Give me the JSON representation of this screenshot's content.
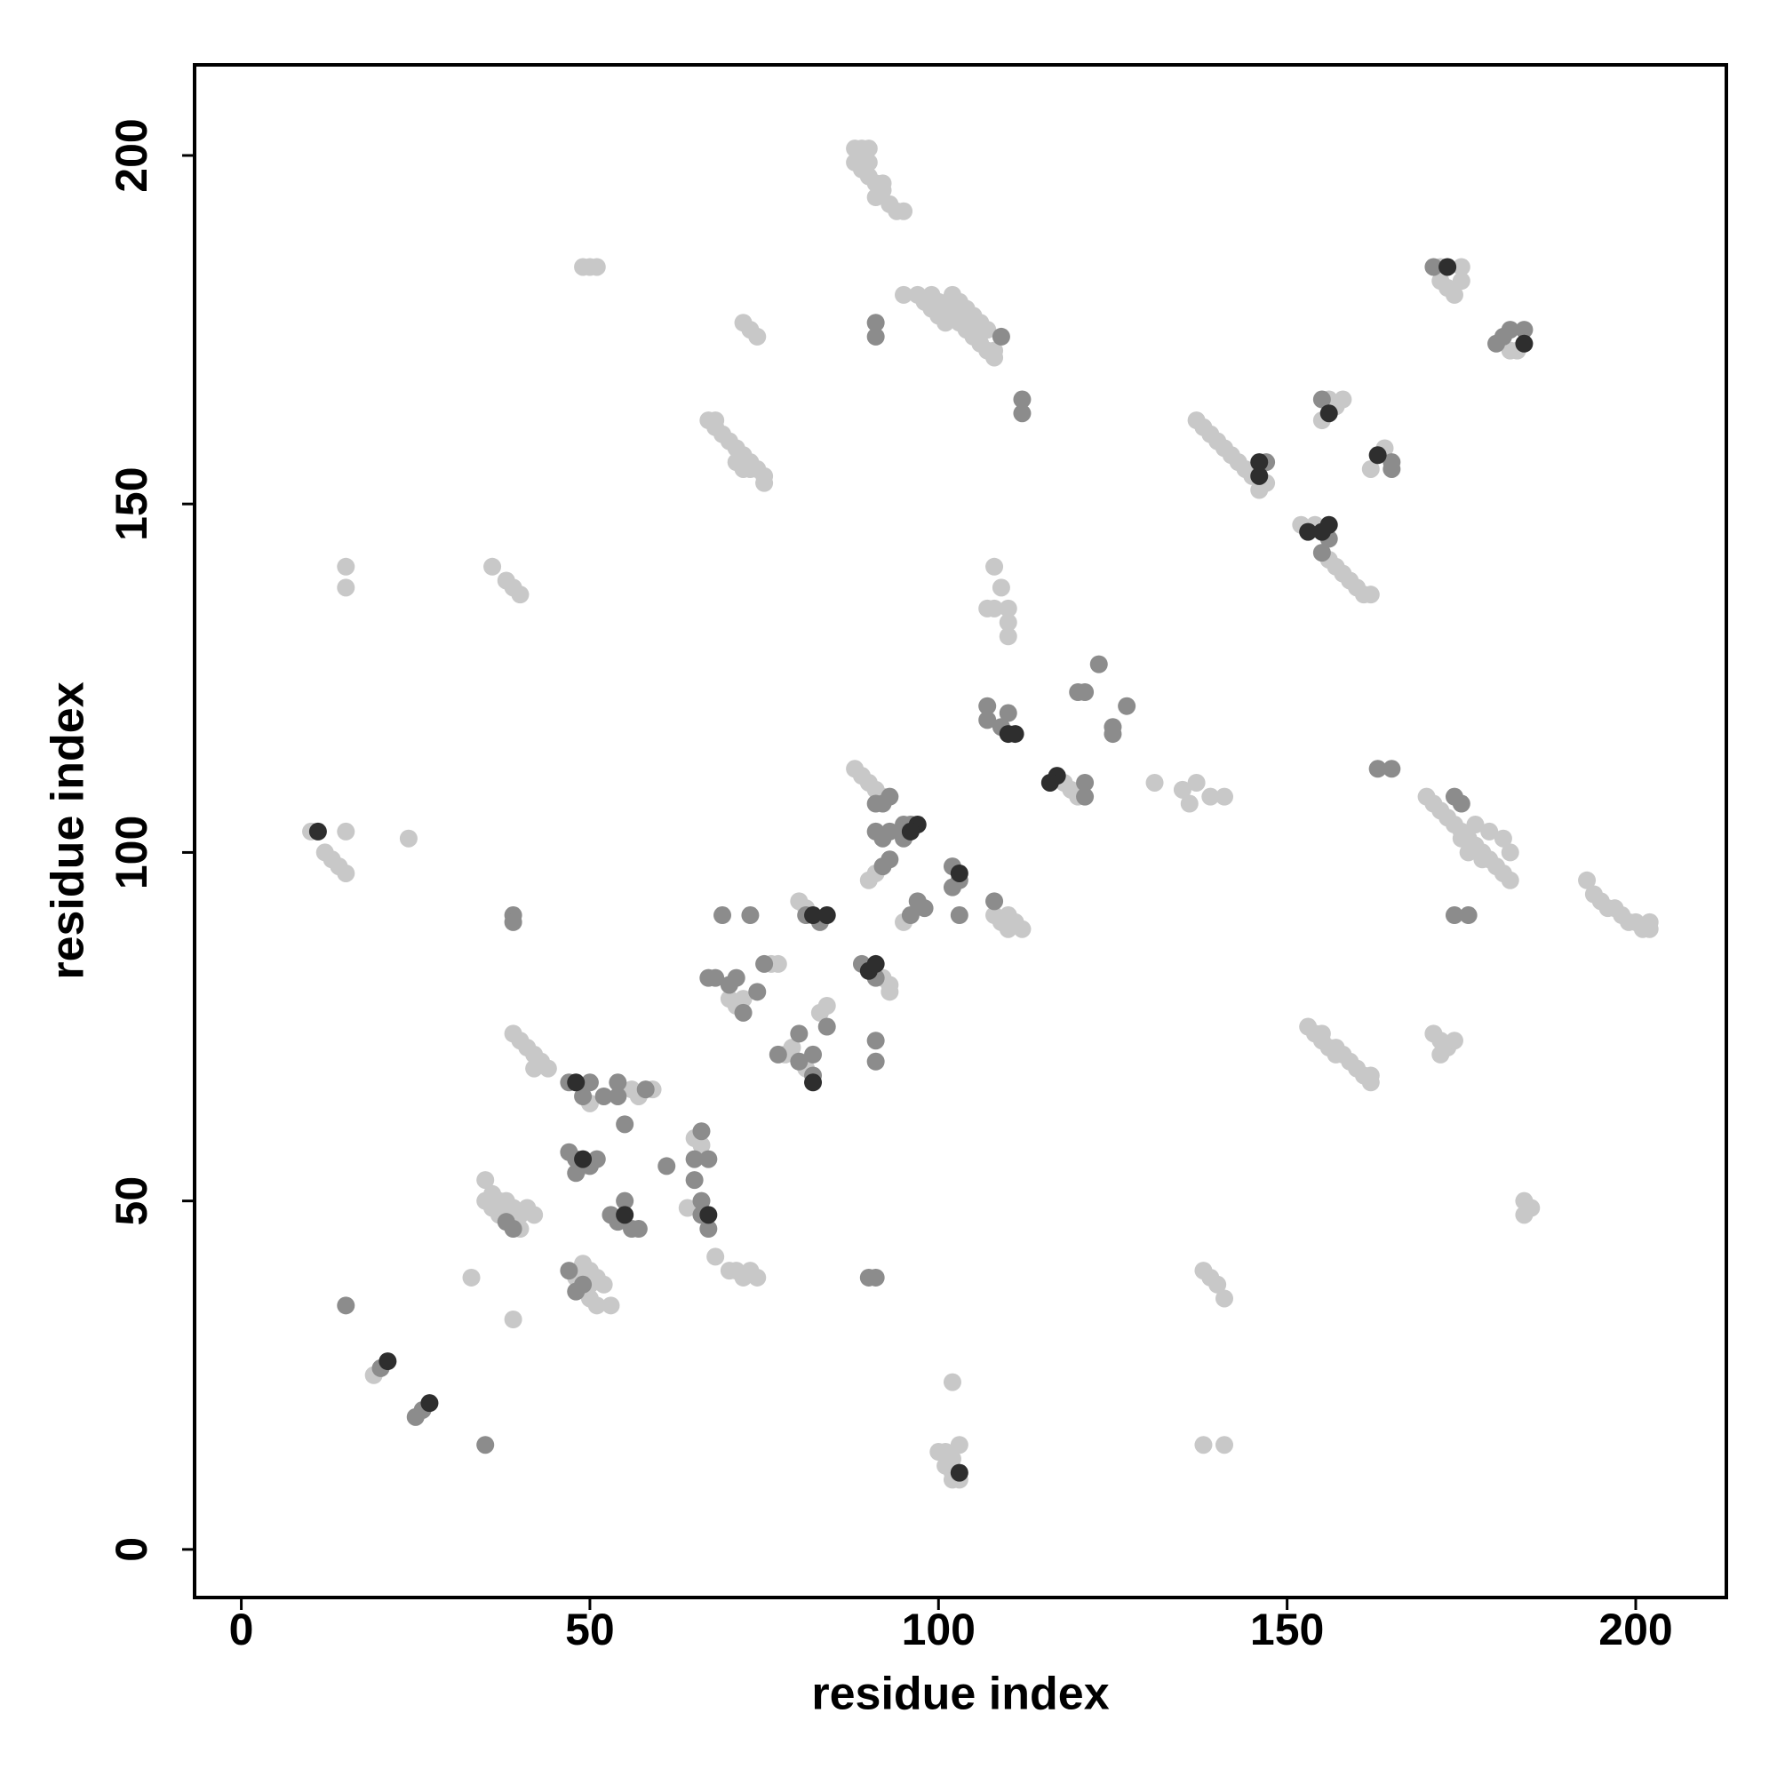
{
  "chart_data": {
    "type": "scatter",
    "x_label": "residue index",
    "y_label": "residue index",
    "xlim": [
      -6.7,
      213
    ],
    "ylim": [
      -6.9,
      213
    ],
    "xticks": [
      0,
      50,
      100,
      150,
      200
    ],
    "yticks": [
      0,
      50,
      100,
      150,
      200
    ],
    "series": [
      {
        "color": "#c8c8c8",
        "x": [
          88,
          89,
          90,
          88,
          89,
          90,
          91,
          92,
          91,
          93,
          94,
          95,
          89,
          90,
          92,
          49,
          50,
          51,
          95,
          97,
          98,
          99,
          100,
          101,
          102,
          103,
          104,
          105,
          106,
          107,
          108,
          108,
          107,
          106,
          105,
          104,
          103,
          102,
          101,
          100,
          99,
          72,
          73,
          74,
          67,
          68,
          68,
          69,
          70,
          71,
          72,
          73,
          73,
          74,
          75,
          75,
          71,
          72,
          15,
          15,
          36,
          38,
          39,
          40,
          108,
          109,
          107,
          108,
          110,
          110,
          110,
          118,
          119,
          120,
          131,
          135,
          136,
          137,
          139,
          141,
          170,
          171,
          172,
          173,
          174,
          175,
          176,
          177,
          178,
          179,
          180,
          181,
          182,
          177,
          179,
          181,
          182,
          175,
          176,
          178,
          193,
          194,
          195,
          196,
          197,
          198,
          199,
          200,
          201,
          202,
          202,
          171,
          172,
          173,
          174,
          172,
          153,
          154,
          155,
          156,
          157,
          158,
          159,
          160,
          161,
          162,
          162,
          155,
          157,
          184,
          185,
          184,
          138,
          139,
          140,
          141,
          138,
          141,
          100,
          101,
          102,
          101,
          102,
          103,
          102,
          103,
          102,
          172,
          175,
          172,
          173,
          175,
          174,
          183,
          182,
          137,
          138,
          139,
          140,
          141,
          142,
          143,
          144,
          145,
          146,
          147,
          156,
          157,
          158,
          155,
          164,
          162,
          152,
          154,
          156,
          157,
          158,
          159,
          160,
          161,
          162,
          10,
          12,
          13,
          14,
          15,
          15,
          24,
          88,
          89,
          90,
          91,
          92,
          91,
          90,
          95,
          108,
          109,
          110,
          111,
          112,
          110,
          80,
          81,
          92,
          93,
          93,
          70,
          71,
          72,
          76,
          77,
          83,
          84,
          79,
          78,
          81,
          39,
          40,
          41,
          42,
          43,
          44,
          42,
          50,
          56,
          59,
          57,
          49,
          65,
          66,
          64,
          35,
          36,
          37,
          38,
          39,
          40,
          41,
          40,
          35,
          36,
          37,
          42,
          48,
          49,
          50,
          51,
          52,
          50,
          51,
          53,
          50,
          33,
          39,
          68,
          70,
          71,
          72,
          74,
          73,
          19
        ],
        "y": [
          201,
          201,
          201,
          199,
          198,
          197,
          196,
          195,
          194,
          193,
          192,
          192,
          200,
          199,
          196,
          184,
          184,
          184,
          180,
          180,
          179,
          180,
          179,
          178,
          180,
          179,
          178,
          177,
          176,
          175,
          172,
          171,
          172,
          173,
          174,
          175,
          176,
          177,
          176,
          177,
          178,
          176,
          175,
          174,
          162,
          162,
          161,
          160,
          159,
          158,
          157,
          156,
          155,
          155,
          154,
          153,
          156,
          155,
          141,
          138,
          141,
          139,
          138,
          137,
          141,
          138,
          135,
          135,
          135,
          131,
          133,
          110,
          109,
          108,
          110,
          109,
          107,
          110,
          108,
          108,
          108,
          107,
          106,
          105,
          104,
          103,
          102,
          101,
          100,
          99,
          98,
          97,
          96,
          104,
          103,
          102,
          100,
          102,
          100,
          99,
          96,
          94,
          93,
          92,
          92,
          91,
          90,
          90,
          89,
          89,
          90,
          74,
          73,
          72,
          73,
          71,
          75,
          74,
          73,
          72,
          71,
          71,
          70,
          69,
          68,
          68,
          67,
          74,
          72,
          50,
          49,
          48,
          40,
          39,
          38,
          36,
          15,
          15,
          14,
          14,
          13,
          12,
          11,
          10,
          10,
          15,
          24,
          184,
          184,
          182,
          181,
          182,
          180,
          172,
          172,
          162,
          161,
          160,
          159,
          158,
          157,
          156,
          155,
          154,
          152,
          153,
          165,
          164,
          165,
          162,
          158,
          155,
          147,
          147,
          142,
          141,
          140,
          139,
          138,
          137,
          137,
          103,
          100,
          99,
          98,
          97,
          103,
          102,
          112,
          111,
          110,
          109,
          108,
          97,
          96,
          90,
          91,
          90,
          91,
          90,
          89,
          89,
          93,
          92,
          82,
          81,
          80,
          79,
          78,
          79,
          84,
          84,
          77,
          78,
          72,
          71,
          69,
          74,
          73,
          72,
          71,
          70,
          69,
          69,
          64,
          66,
          66,
          65,
          55,
          59,
          58,
          49,
          53,
          51,
          50,
          50,
          49,
          48,
          49,
          46,
          50,
          49,
          48,
          48,
          39,
          41,
          40,
          39,
          38,
          36,
          35,
          35,
          38,
          39,
          33,
          42,
          40,
          40,
          39,
          39,
          40,
          25
        ]
      },
      {
        "color": "#8c8c8c",
        "x": [
          91,
          91,
          109,
          112,
          112,
          120,
          121,
          123,
          125,
          125,
          127,
          107,
          107,
          109,
          110,
          121,
          121,
          163,
          165,
          174,
          175,
          174,
          176,
          171,
          180,
          181,
          182,
          184,
          147,
          155,
          165,
          165,
          155,
          156,
          39,
          39,
          93,
          91,
          92,
          91,
          92,
          93,
          95,
          96,
          95,
          93,
          92,
          102,
          103,
          102,
          97,
          98,
          96,
          103,
          108,
          83,
          81,
          69,
          73,
          89,
          91,
          67,
          68,
          70,
          71,
          74,
          72,
          75,
          84,
          80,
          77,
          80,
          82,
          82,
          91,
          91,
          47,
          50,
          49,
          52,
          54,
          58,
          54,
          55,
          61,
          47,
          48,
          50,
          51,
          48,
          66,
          65,
          67,
          65,
          66,
          66,
          67,
          53,
          54,
          55,
          56,
          57,
          38,
          39,
          47,
          49,
          48,
          15,
          35,
          90,
          91,
          20,
          26,
          25
        ],
        "y": [
          176,
          174,
          174,
          165,
          163,
          123,
          123,
          127,
          118,
          117,
          121,
          121,
          119,
          118,
          120,
          110,
          108,
          112,
          112,
          108,
          107,
          91,
          91,
          184,
          173,
          174,
          175,
          175,
          156,
          165,
          155,
          156,
          143,
          145,
          91,
          90,
          108,
          107,
          107,
          103,
          102,
          103,
          104,
          104,
          102,
          99,
          98,
          98,
          96,
          95,
          93,
          92,
          91,
          91,
          93,
          90,
          91,
          91,
          91,
          84,
          82,
          82,
          82,
          81,
          82,
          80,
          77,
          84,
          75,
          74,
          71,
          70,
          71,
          68,
          73,
          70,
          67,
          67,
          65,
          65,
          67,
          66,
          65,
          61,
          55,
          57,
          56,
          55,
          56,
          54,
          60,
          56,
          56,
          53,
          50,
          48,
          46,
          48,
          47,
          50,
          46,
          46,
          47,
          46,
          40,
          38,
          37,
          35,
          15,
          39,
          39,
          26,
          20,
          19
        ]
      },
      {
        "color": "#2e2e2e",
        "x": [
          110,
          111,
          117,
          116,
          173,
          184,
          146,
          146,
          156,
          163,
          153,
          155,
          156,
          11,
          97,
          96,
          103,
          82,
          84,
          90,
          91,
          82,
          48,
          49,
          67,
          55,
          21,
          27,
          103
        ],
        "y": [
          117,
          117,
          111,
          110,
          184,
          173,
          156,
          154,
          163,
          157,
          146,
          146,
          147,
          103,
          104,
          103,
          97,
          91,
          91,
          83,
          84,
          67,
          67,
          56,
          48,
          48,
          27,
          21,
          11
        ]
      }
    ]
  }
}
